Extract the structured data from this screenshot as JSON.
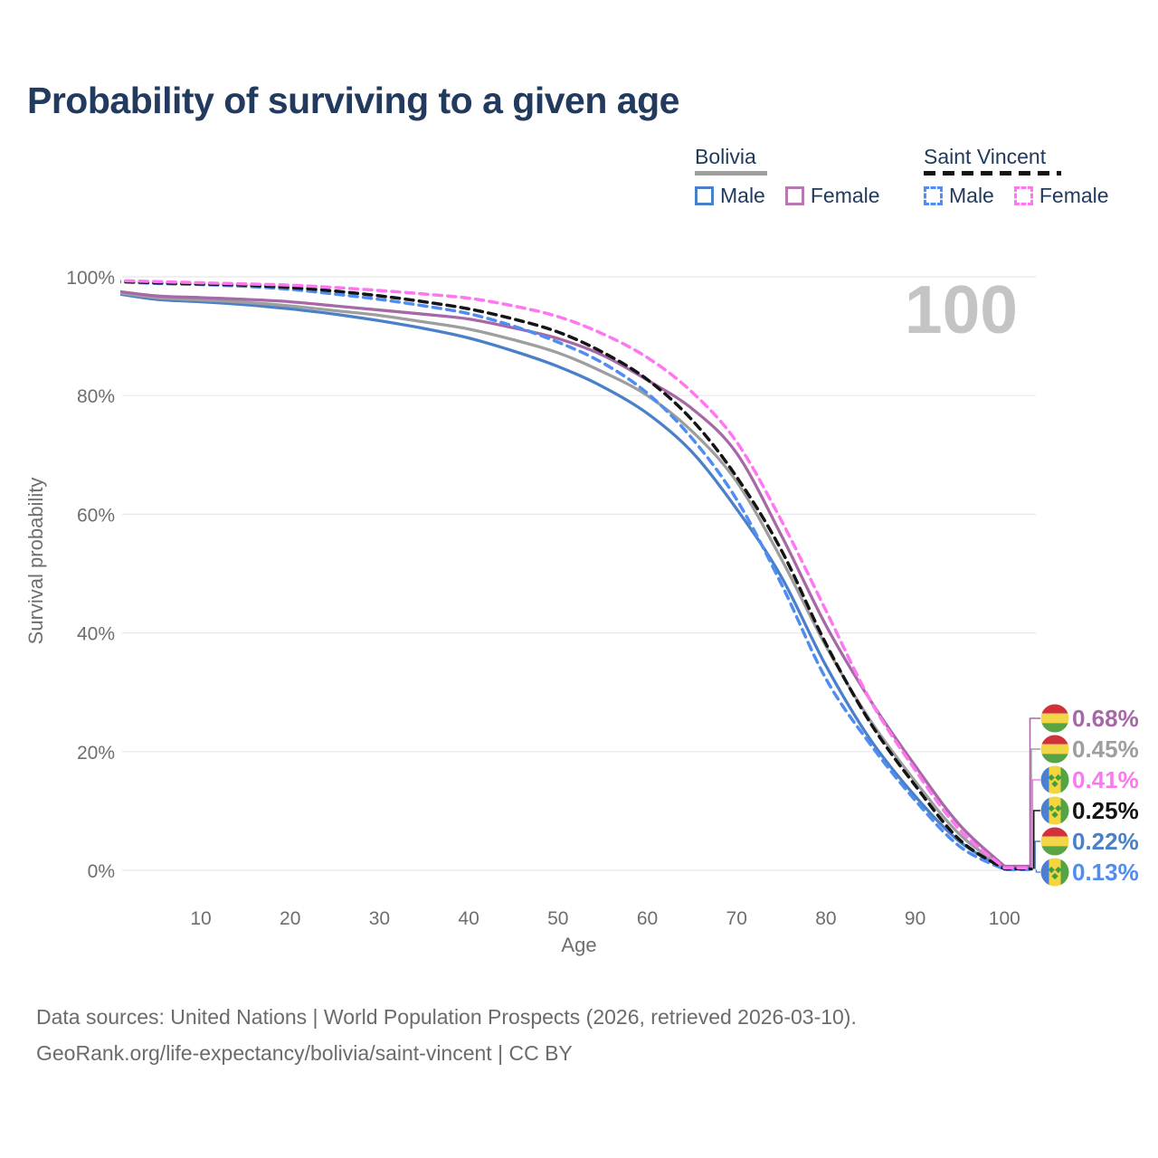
{
  "title": "Probability of surviving to a given age",
  "watermark": "100",
  "legend": {
    "groups": [
      {
        "name": "Bolivia",
        "underline_style": "solid",
        "underline_color": "#9e9e9e",
        "items": [
          {
            "label": "Male",
            "color": "#4a80c8",
            "dashed": false
          },
          {
            "label": "Female",
            "color": "#b578b0",
            "dashed": false
          }
        ]
      },
      {
        "name": "Saint Vincent",
        "underline_style": "dashed",
        "underline_color": "#141414",
        "items": [
          {
            "label": "Male",
            "color": "#4f8df2",
            "dashed": true
          },
          {
            "label": "Female",
            "color": "#ff77f0",
            "dashed": true
          }
        ]
      }
    ]
  },
  "chart_data": {
    "type": "line",
    "title": "Probability of surviving to a given age",
    "xlabel": "Age",
    "ylabel": "Survival probability",
    "x_ticks": [
      10,
      20,
      30,
      40,
      50,
      60,
      70,
      80,
      90,
      100
    ],
    "y_ticks": [
      0,
      20,
      40,
      60,
      80,
      100
    ],
    "y_tick_suffix": "%",
    "xlim": [
      0,
      103
    ],
    "ylim": [
      0,
      100
    ],
    "grid": "horizontal",
    "legend_position": "top-right",
    "age_cursor": "100",
    "x": [
      0,
      5,
      10,
      15,
      20,
      25,
      30,
      35,
      40,
      45,
      50,
      55,
      60,
      65,
      70,
      75,
      80,
      85,
      90,
      95,
      100
    ],
    "series": [
      {
        "key": "bolivia_male",
        "name": "Bolivia Male",
        "country": "Bolivia",
        "sex": "Male",
        "color": "#4a80c8",
        "dashed": false,
        "values": [
          97.3,
          96.2,
          95.8,
          95.3,
          94.6,
          93.7,
          92.6,
          91.3,
          89.7,
          87.5,
          84.9,
          81.5,
          77.0,
          70.5,
          60.9,
          49.5,
          34.5,
          22.0,
          12.5,
          4.8,
          0.22
        ]
      },
      {
        "key": "bolivia_total",
        "name": "Bolivia Both sexes",
        "country": "Bolivia",
        "sex": "Both",
        "color": "#9e9e9e",
        "dashed": false,
        "values": [
          97.5,
          96.5,
          96.1,
          95.7,
          95.1,
          94.3,
          93.5,
          92.4,
          91.2,
          89.4,
          87.2,
          84.0,
          80.0,
          74.0,
          65.5,
          52.5,
          37.8,
          25.2,
          15.0,
          6.0,
          0.45
        ]
      },
      {
        "key": "bolivia_female",
        "name": "Bolivia Female",
        "country": "Bolivia",
        "sex": "Female",
        "color": "#a768a8",
        "dashed": false,
        "values": [
          97.7,
          96.8,
          96.5,
          96.2,
          95.8,
          95.1,
          94.4,
          93.7,
          92.9,
          91.4,
          89.6,
          86.8,
          82.6,
          77.8,
          70.3,
          56.5,
          41.3,
          28.6,
          17.6,
          7.6,
          0.68
        ]
      },
      {
        "key": "sv_male",
        "name": "Saint Vincent Male",
        "country": "Saint Vincent",
        "sex": "Male",
        "color": "#4f8df2",
        "dashed": true,
        "values": [
          99.2,
          98.9,
          98.7,
          98.4,
          97.9,
          97.1,
          96.2,
          95.1,
          93.8,
          91.7,
          89.0,
          85.5,
          80.4,
          72.8,
          62.5,
          48.3,
          32.3,
          21.2,
          11.8,
          4.0,
          0.13
        ]
      },
      {
        "key": "sv_total",
        "name": "Saint Vincent Both sexes",
        "country": "Saint Vincent",
        "sex": "Both",
        "color": "#141414",
        "dashed": true,
        "values": [
          99.3,
          99.0,
          98.8,
          98.6,
          98.2,
          97.6,
          96.8,
          95.8,
          94.6,
          92.9,
          90.7,
          87.3,
          82.7,
          75.9,
          66.3,
          54.0,
          38.2,
          24.8,
          14.3,
          5.1,
          0.25
        ]
      },
      {
        "key": "sv_female",
        "name": "Saint Vincent Female",
        "country": "Saint Vincent",
        "sex": "Female",
        "color": "#ff77f0",
        "dashed": true,
        "values": [
          99.4,
          99.2,
          99.0,
          98.8,
          98.6,
          98.2,
          97.7,
          97.1,
          96.4,
          95.1,
          93.3,
          90.4,
          86.4,
          80.6,
          72.2,
          59.0,
          43.8,
          28.6,
          16.9,
          6.8,
          0.41
        ]
      }
    ],
    "end_labels": [
      {
        "series": "bolivia_female",
        "text": "0.68%",
        "color": "#a768a8",
        "flag": "bolivia"
      },
      {
        "series": "bolivia_total",
        "text": "0.45%",
        "color": "#9e9e9e",
        "flag": "bolivia"
      },
      {
        "series": "sv_female",
        "text": "0.41%",
        "color": "#ff77f0",
        "flag": "saint_vincent"
      },
      {
        "series": "sv_total",
        "text": "0.25%",
        "color": "#141414",
        "flag": "saint_vincent"
      },
      {
        "series": "bolivia_male",
        "text": "0.22%",
        "color": "#4a80c8",
        "flag": "bolivia"
      },
      {
        "series": "sv_male",
        "text": "0.13%",
        "color": "#4f8df2",
        "flag": "saint_vincent"
      }
    ],
    "flag_colors": {
      "bolivia": {
        "stripes": [
          "#d3313a",
          "#f2d648",
          "#57a345"
        ]
      },
      "saint_vincent": {
        "bands": [
          "#4a7fd4",
          "#f4d53f",
          "#54a345"
        ],
        "diamond": "#3f9e3f"
      }
    }
  },
  "footer": {
    "line1": "Data sources: United Nations | World Population Prospects (2026, retrieved 2026-03-10).",
    "line2": "GeoRank.org/life-expectancy/bolivia/saint-vincent | CC BY"
  }
}
